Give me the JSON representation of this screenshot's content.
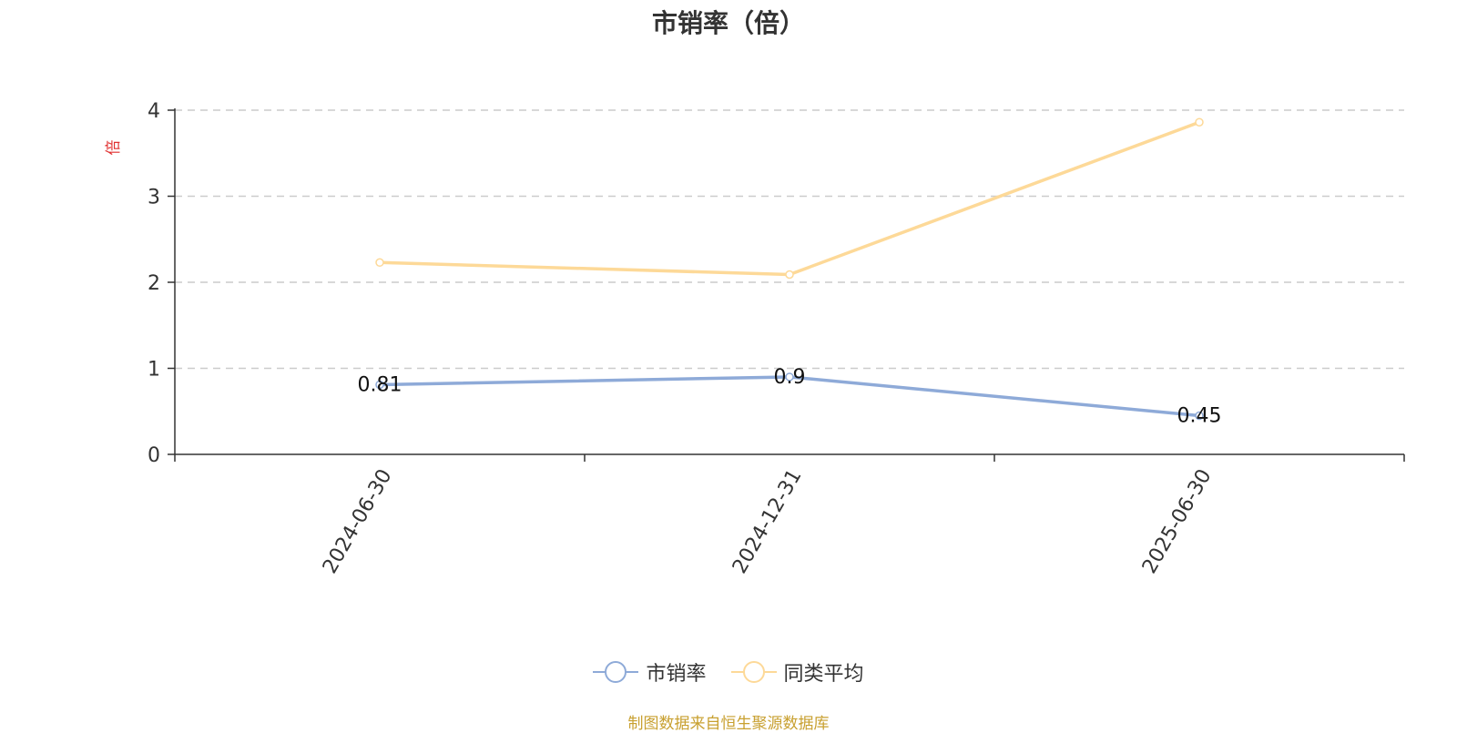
{
  "chart_data": {
    "type": "line",
    "title": "市销率（倍）",
    "ylabel": "倍",
    "xlabel": "",
    "categories": [
      "2024-06-30",
      "2024-12-31",
      "2025-06-30"
    ],
    "ylim": [
      0,
      4
    ],
    "yticks": [
      "0",
      "1",
      "2",
      "3",
      "4"
    ],
    "grid": true,
    "legend_position": "bottom",
    "series": [
      {
        "name": "市销率",
        "values": [
          0.81,
          0.9,
          0.45
        ],
        "labels": [
          "0.81",
          "0.9",
          "0.45"
        ],
        "color": "#8eaad8"
      },
      {
        "name": "同类平均",
        "values": [
          2.23,
          2.09,
          3.86
        ],
        "labels": [],
        "color": "#fdd998"
      }
    ]
  },
  "footer": {
    "source": "制图数据来自恒生聚源数据库"
  },
  "colors": {
    "axis": "#333333",
    "grid": "#cccccc",
    "ylabel": "#e03030",
    "source": "#c8a030"
  }
}
